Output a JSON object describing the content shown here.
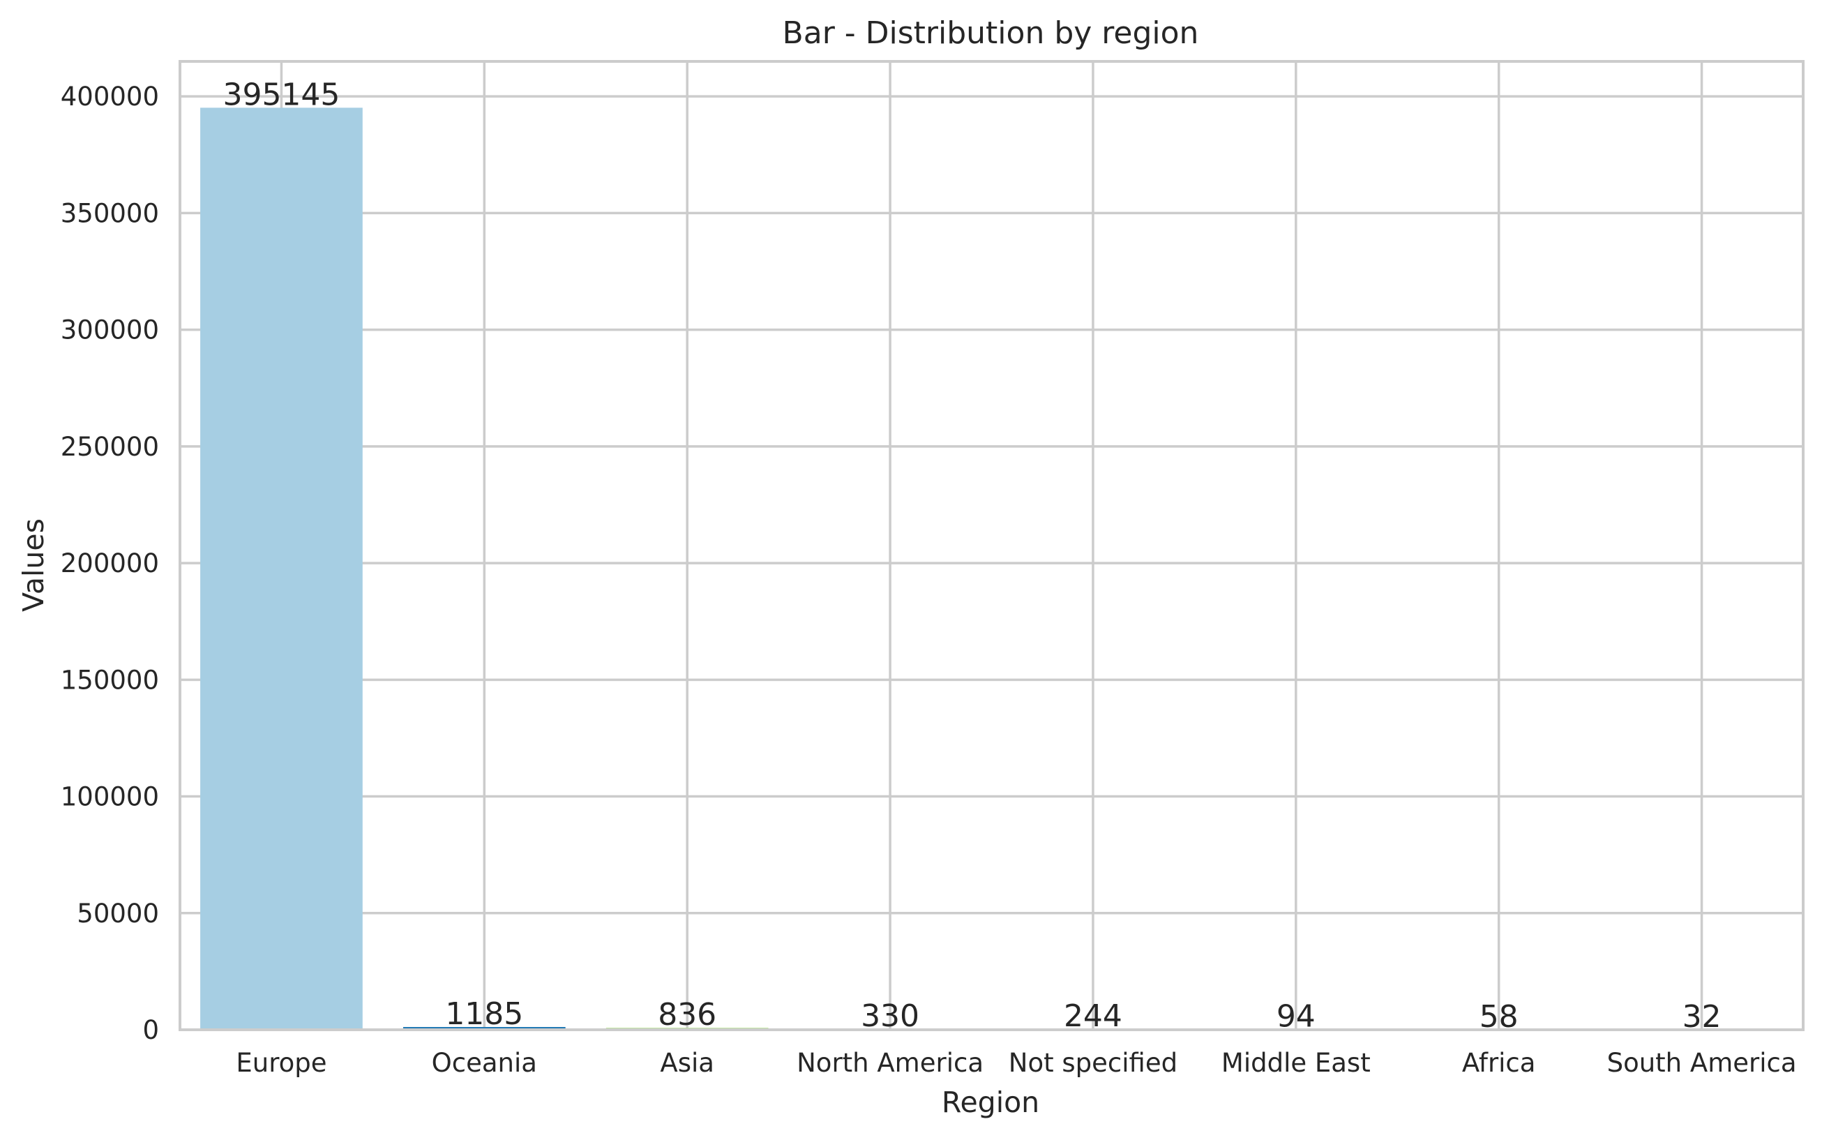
{
  "chart_data": {
    "type": "bar",
    "title": "Bar - Distribution by region",
    "xlabel": "Region",
    "ylabel": "Values",
    "categories": [
      "Europe",
      "Oceania",
      "Asia",
      "North America",
      "Not specified",
      "Middle East",
      "Africa",
      "South America"
    ],
    "values": [
      395145,
      1185,
      836,
      330,
      244,
      94,
      58,
      32
    ],
    "data_labels": [
      "395145",
      "1185",
      "836",
      "330",
      "244",
      "94",
      "58",
      "32"
    ],
    "bar_colors": [
      "#a6cee3",
      "#1f78b4",
      "#b2df8a",
      "#33a02c",
      "#fb9a99",
      "#e31a1c",
      "#fdbf6f",
      "#ff7f00"
    ],
    "ylim": [
      0,
      415000
    ],
    "yticks": [
      0,
      50000,
      100000,
      150000,
      200000,
      250000,
      300000,
      350000,
      400000
    ],
    "ytick_labels": [
      "0",
      "50000",
      "100000",
      "150000",
      "200000",
      "250000",
      "300000",
      "350000",
      "400000"
    ],
    "grid": true,
    "legend": "none"
  }
}
